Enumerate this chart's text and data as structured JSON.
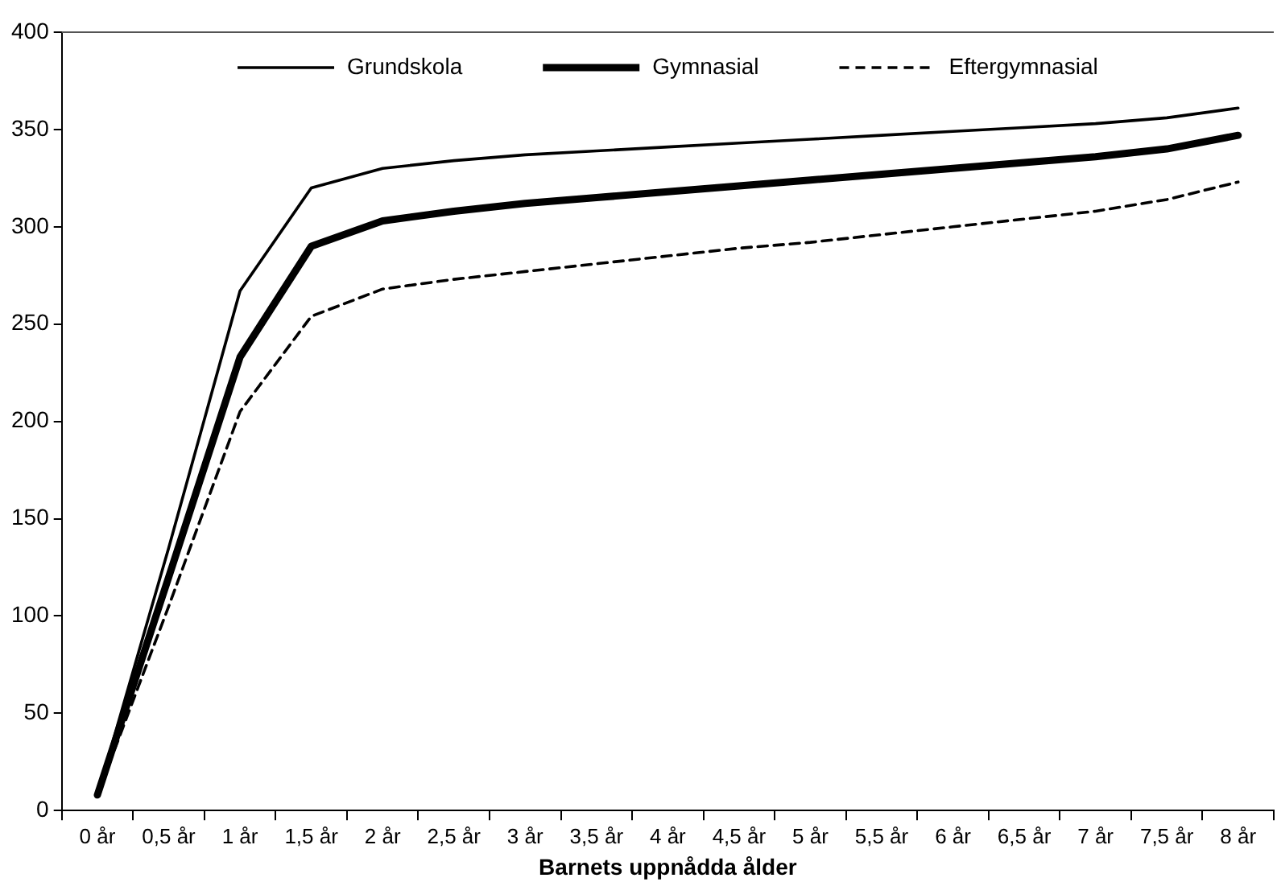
{
  "chart_data": {
    "type": "line",
    "xlabel": "Barnets uppnådda ålder",
    "categories": [
      "0 år",
      "0,5 år",
      "1 år",
      "1,5 år",
      "2 år",
      "2,5 år",
      "3 år",
      "3,5 år",
      "4 år",
      "4,5 år",
      "5 år",
      "5,5 år",
      "6 år",
      "6,5 år",
      "7 år",
      "7,5 år",
      "8 år"
    ],
    "series": [
      {
        "name": "Grundskola",
        "color": "#000000",
        "line_style": "solid",
        "values": [
          8,
          135,
          267,
          320,
          330,
          334,
          337,
          339,
          341,
          343,
          345,
          347,
          349,
          351,
          353,
          356,
          361
        ]
      },
      {
        "name": "Gymnasial",
        "color": "#000000",
        "line_style": "solid",
        "values": [
          8,
          120,
          233,
          290,
          303,
          308,
          312,
          315,
          318,
          321,
          324,
          327,
          330,
          333,
          336,
          340,
          347
        ]
      },
      {
        "name": "Eftergymnasial",
        "color": "#000000",
        "line_style": "dashed",
        "values": [
          8,
          105,
          205,
          254,
          268,
          273,
          277,
          281,
          285,
          289,
          292,
          296,
          300,
          304,
          308,
          314,
          323
        ]
      }
    ],
    "ylim": [
      0,
      400
    ],
    "yticks": [
      0,
      50,
      100,
      150,
      200,
      250,
      300,
      350,
      400
    ],
    "grid": false,
    "legend": "top",
    "marker": "none"
  }
}
